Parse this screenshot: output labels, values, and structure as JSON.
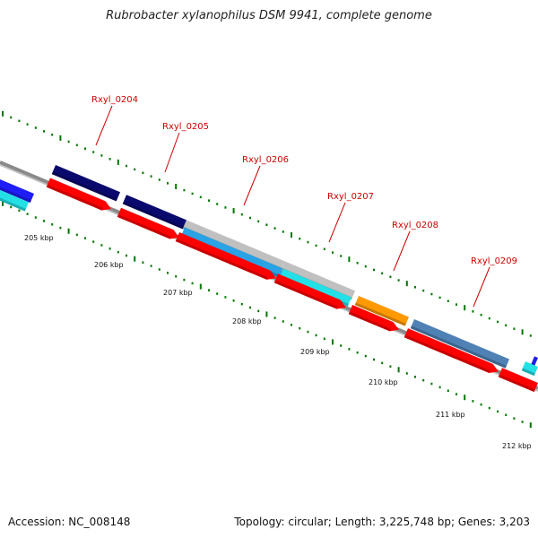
{
  "title": "Rubrobacter xylanophilus DSM 9941, complete genome",
  "footer": {
    "accession": "Accession: NC_008148",
    "summary": "Topology: circular; Length: 3,225,748 bp; Genes: 3,203"
  },
  "colors": {
    "backbone": "#888888",
    "cds": "#ff0000",
    "navy": "#0a0a6e",
    "sky": "#29a3e6",
    "gray": "#c0c0c0",
    "cyan": "#22e0e6",
    "orange": "#ff9900",
    "steel": "#4f81b5",
    "blue": "#1e1ef5",
    "tick": "#007700",
    "label": "#cc0000"
  },
  "scale_labels": [
    "205 kbp",
    "206 kbp",
    "207 kbp",
    "208 kbp",
    "209 kbp",
    "210 kbp",
    "211 kbp",
    "212 kbp"
  ],
  "gene_labels": [
    "Rxyl_0204",
    "Rxyl_0205",
    "Rxyl_0206",
    "Rxyl_0207",
    "Rxyl_0208",
    "Rxyl_0209"
  ]
}
